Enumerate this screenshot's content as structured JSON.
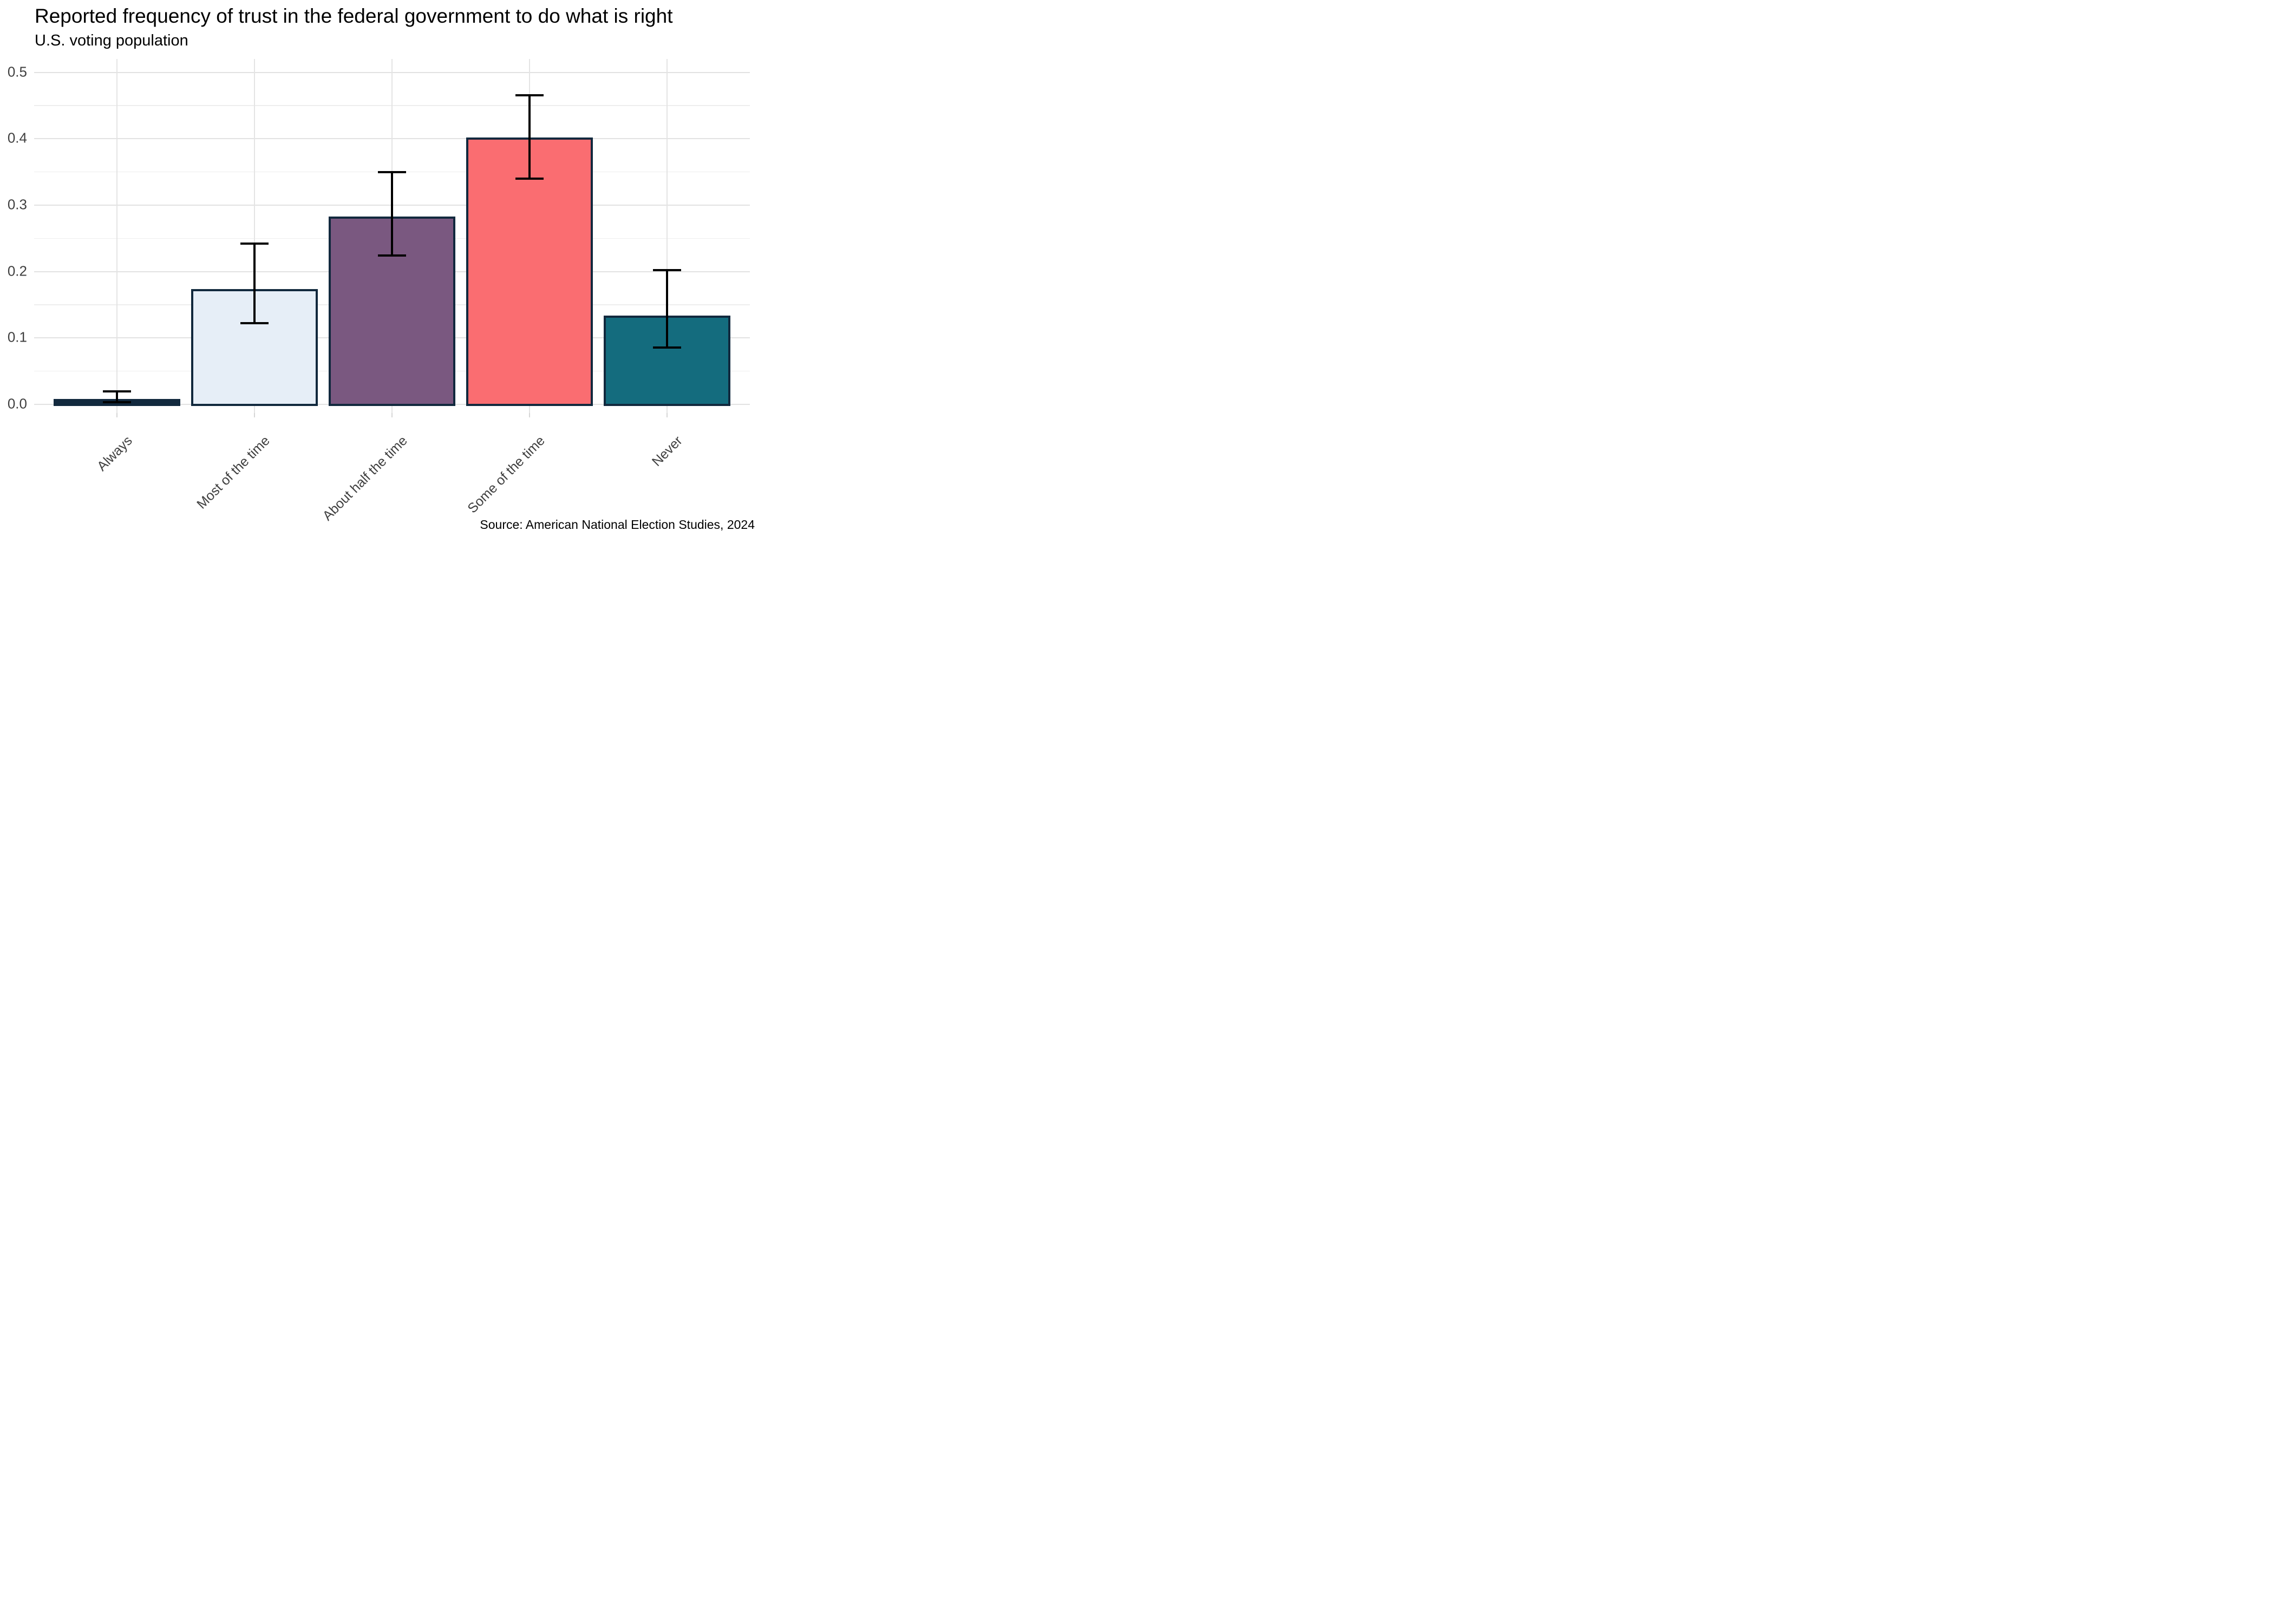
{
  "header": {
    "title": "Reported frequency of trust in the federal government to do what is right",
    "subtitle": "U.S. voting population"
  },
  "caption": {
    "text": "Source: American National Election Studies, 2024"
  },
  "chart_data": {
    "type": "bar",
    "title": "Reported frequency of trust in the federal government to do what is right",
    "subtitle": "U.S. voting population",
    "source": "Source: American National Election Studies, 2024",
    "categories": [
      "Always",
      "Most of the time",
      "About half the time",
      "Some of the time",
      "Never"
    ],
    "values": [
      0.008,
      0.174,
      0.283,
      0.402,
      0.134
    ],
    "error_low": [
      0.003,
      0.122,
      0.224,
      0.34,
      0.086
    ],
    "error_high": [
      0.02,
      0.242,
      0.35,
      0.465,
      0.202
    ],
    "bar_colors": [
      "#12293E",
      "#E6EEF7",
      "#7A5880",
      "#FA6D71",
      "#146C7E"
    ],
    "bar_border_color": "#12293E",
    "error_bar_color": "#000000",
    "y_tick_values": [
      0,
      0.1,
      0.2,
      0.3,
      0.4,
      0.5
    ],
    "y_tick_labels": [
      "0.0",
      "0.1",
      "0.2",
      "0.3",
      "0.4",
      "0.5"
    ],
    "y_minor_values": [
      0.05,
      0.15,
      0.25,
      0.35,
      0.45
    ],
    "ylim": [
      -0.013,
      0.52
    ],
    "xlabel": "",
    "ylabel": "",
    "grid": "horizontal major+minor light gray, vertical major at category centers",
    "legend": "none",
    "x_tick_label_angle_deg": 45
  }
}
